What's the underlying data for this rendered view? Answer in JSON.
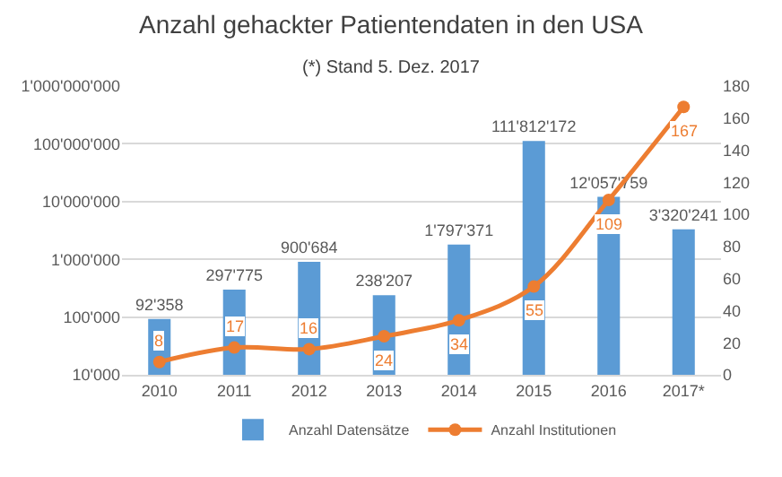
{
  "chart_data": {
    "type": "bar",
    "title": "Anzahl gehackter Patientendaten in den USA",
    "subtitle": "(*) Stand 5. Dez. 2017",
    "categories": [
      "2010",
      "2011",
      "2012",
      "2013",
      "2014",
      "2015",
      "2016",
      "2017*"
    ],
    "series": [
      {
        "name": "Anzahl Datensätze",
        "color": "#5b9bd5",
        "values": [
          92358,
          297775,
          900684,
          238207,
          1797371,
          111812172,
          12057759,
          3320241
        ],
        "value_labels": [
          "92'358",
          "297'775",
          "900'684",
          "238'207",
          "1'797'371",
          "111'812'172",
          "12'057'759",
          "3'320'241"
        ]
      },
      {
        "name": "Anzahl Institutionen",
        "type": "line",
        "axis": "y2",
        "color": "#ed7d31",
        "marker": "circle",
        "values": [
          8,
          17,
          16,
          24,
          34,
          55,
          109,
          167
        ],
        "value_labels": [
          "8",
          "17",
          "16",
          "24",
          "34",
          "55",
          "109",
          "167"
        ]
      }
    ],
    "log": "y",
    "ylim": [
      10000,
      1000000000
    ],
    "yticks": [
      {
        "value": 10000,
        "label": "10'000"
      },
      {
        "value": 100000,
        "label": "100'000"
      },
      {
        "value": 1000000,
        "label": "1'000'000"
      },
      {
        "value": 10000000,
        "label": "10'000'000"
      },
      {
        "value": 100000000,
        "label": "100'000'000"
      },
      {
        "value": 1000000000,
        "label": "1'000'000'000"
      }
    ],
    "y2lim": [
      0,
      180
    ],
    "y2ticks": [
      0,
      20,
      40,
      60,
      80,
      100,
      120,
      140,
      160,
      180
    ],
    "grid": "y",
    "legend": "bottom"
  }
}
